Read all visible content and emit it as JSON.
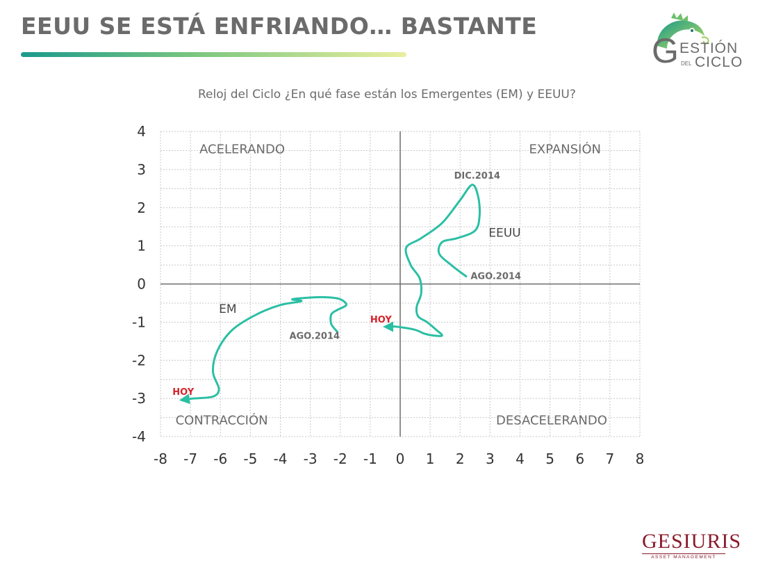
{
  "header": {
    "title": "EEUU SE ESTÁ ENFRIANDO… BASTANTE"
  },
  "logo": {
    "letter": "G",
    "word_1": "ESTIÓN",
    "word_2": "DEL",
    "word_3": "CICLO"
  },
  "footer": {
    "brand_name": "GESIURIS",
    "brand_sub": "ASSET MANAGEMENT"
  },
  "colors": {
    "title_text": "#6b6b6b",
    "curve": "#2bbfa4",
    "hoy_label": "#d6232b",
    "brand": "#8a1a2a",
    "axis": "#6b6b6b",
    "grid": "#c8c8c8"
  },
  "chart_data": {
    "type": "line",
    "title": "Reloj del Ciclo ¿En qué fase están los Emergentes (EM) y EEUU?",
    "xlabel": "",
    "ylabel": "",
    "xlim": [
      -8,
      8
    ],
    "ylim": [
      -4,
      4
    ],
    "x_ticks": [
      "-8",
      "-7",
      "-6",
      "-5",
      "-4",
      "-3",
      "-2",
      "-1",
      "0",
      "1",
      "2",
      "3",
      "4",
      "5",
      "6",
      "7",
      "8"
    ],
    "y_ticks": [
      "4",
      "3",
      "2",
      "1",
      "0",
      "-1",
      "-2",
      "-3",
      "-4"
    ],
    "grid": true,
    "quadrants": [
      {
        "label": "ACELERANDO",
        "x": -6.7,
        "y": 3.55
      },
      {
        "label": "EXPANSIÓN",
        "x": 4.3,
        "y": 3.55
      },
      {
        "label": "CONTRACCIÓN",
        "x": -7.5,
        "y": -3.55
      },
      {
        "label": "DESACELERANDO",
        "x": 3.2,
        "y": -3.55
      }
    ],
    "series": [
      {
        "name": "EEUU",
        "label_pos": [
          2.95,
          1.35
        ],
        "x": [
          2.2,
          1.7,
          1.3,
          1.4,
          1.9,
          2.5,
          2.65,
          2.6,
          2.4,
          2.0,
          1.4,
          0.7,
          0.2,
          0.35,
          0.65,
          0.7,
          0.55,
          0.6,
          0.9,
          1.2,
          1.4,
          1.1,
          0.8,
          0.5,
          -0.1,
          -0.3
        ],
        "y": [
          0.2,
          0.5,
          0.8,
          1.1,
          1.2,
          1.4,
          1.8,
          2.3,
          2.6,
          2.2,
          1.6,
          1.2,
          0.95,
          0.5,
          0.15,
          -0.25,
          -0.6,
          -0.85,
          -1.0,
          -1.2,
          -1.35,
          -1.35,
          -1.3,
          -1.2,
          -1.12,
          -1.12
        ]
      },
      {
        "name": "EM",
        "label_pos": [
          -6.05,
          -0.65
        ],
        "x": [
          -2.1,
          -2.3,
          -2.3,
          -2.1,
          -1.8,
          -2.0,
          -2.4,
          -2.9,
          -3.6,
          -3.3,
          -4.0,
          -4.8,
          -5.6,
          -6.1,
          -6.25,
          -6.05,
          -6.25,
          -6.9,
          -7.1
        ],
        "y": [
          -1.25,
          -1.05,
          -0.8,
          -0.68,
          -0.55,
          -0.4,
          -0.35,
          -0.35,
          -0.4,
          -0.45,
          -0.55,
          -0.8,
          -1.2,
          -1.75,
          -2.3,
          -2.75,
          -2.95,
          -3.0,
          -3.02
        ]
      }
    ],
    "annotations": [
      {
        "text": "DIC.2014",
        "x": 1.8,
        "y": 2.85,
        "kind": "date"
      },
      {
        "text": "AGO.2014",
        "x": 2.35,
        "y": 0.22,
        "kind": "date"
      },
      {
        "text": "AGO.2014",
        "x": -3.7,
        "y": -1.35,
        "kind": "date"
      },
      {
        "text": "HOY",
        "x": -1.0,
        "y": -0.92,
        "kind": "now"
      },
      {
        "text": "HOY",
        "x": -7.6,
        "y": -2.82,
        "kind": "now"
      }
    ]
  }
}
